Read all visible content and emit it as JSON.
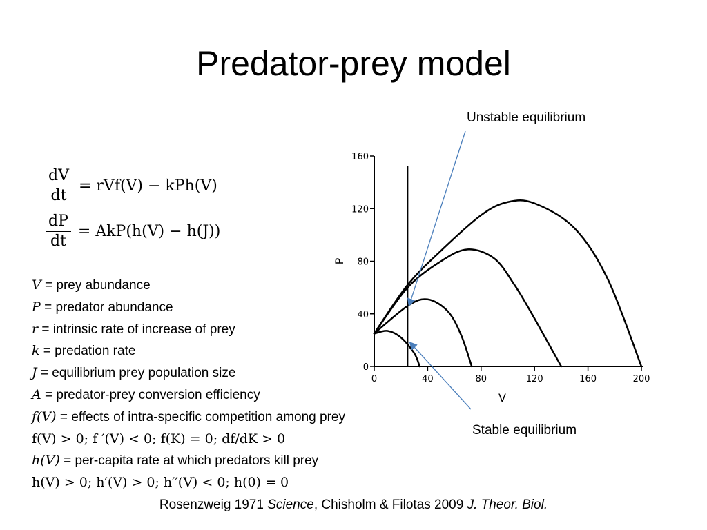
{
  "title": "Predator-prey model",
  "equations": {
    "eq1": {
      "num": "dV",
      "den": "dt",
      "rhs": "= rVf(V) − kPh(V)"
    },
    "eq2": {
      "num": "dP",
      "den": "dt",
      "rhs": "= AkP(h(V) − h(J))"
    }
  },
  "definitions": [
    {
      "symbol": "V",
      "text": " = prey abundance"
    },
    {
      "symbol": "P",
      "text": " = predator abundance"
    },
    {
      "symbol": "r",
      "text": " = intrinsic rate of increase of prey"
    },
    {
      "symbol": "k",
      "text": " = predation rate"
    },
    {
      "symbol": "J",
      "text": " = equilibrium prey population size"
    },
    {
      "symbol": "A",
      "text": " = predator-prey conversion efficiency"
    },
    {
      "symbol": "f(V)",
      "text": " = effects of intra-specific competition among prey"
    },
    {
      "formula": "f(V) > 0; f ′(V) < 0; f(K) = 0; df/dK > 0"
    },
    {
      "symbol": "h(V)",
      "text": " = per-capita rate at which predators kill prey"
    },
    {
      "formula": "h(V) > 0; h′(V) > 0; h′′(V) < 0; h(0) = 0"
    }
  ],
  "citation": {
    "part1": "Rosenzweig 1971 ",
    "part2": "Science",
    "part3": ", Chisholm & Filotas 2009 ",
    "part4": "J. Theor. Biol."
  },
  "annotations": {
    "unstable": "Unstable equilibrium",
    "stable": "Stable equilibrium",
    "arrow_color": "#4a7ebb"
  },
  "chart_data": {
    "type": "line",
    "xlabel": "V",
    "ylabel": "P",
    "xlim": [
      0,
      200
    ],
    "ylim": [
      0,
      160
    ],
    "xticks": [
      0,
      40,
      80,
      120,
      160,
      200
    ],
    "yticks": [
      0,
      40,
      80,
      120,
      160
    ],
    "vertical_line_x": 25,
    "series": [
      {
        "x": [
          0,
          10,
          20,
          30,
          34
        ],
        "y": [
          25,
          27,
          22,
          10,
          0
        ]
      },
      {
        "x": [
          0,
          25,
          40,
          55,
          65,
          73
        ],
        "y": [
          25,
          46,
          51,
          42,
          24,
          0
        ]
      },
      {
        "x": [
          0,
          25,
          50,
          70,
          90,
          105,
          118,
          140
        ],
        "y": [
          25,
          60,
          80,
          89,
          82,
          62,
          40,
          0
        ]
      },
      {
        "x": [
          0,
          25,
          50,
          80,
          100,
          120,
          150,
          175,
          200
        ],
        "y": [
          25,
          62,
          88,
          115,
          125,
          124,
          105,
          66,
          0
        ]
      }
    ]
  }
}
